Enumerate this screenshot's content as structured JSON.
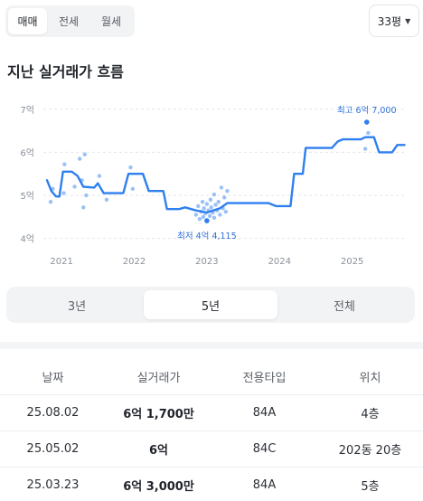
{
  "deal_tabs": [
    {
      "label": "매매",
      "active": true
    },
    {
      "label": "전세",
      "active": false
    },
    {
      "label": "월세",
      "active": false
    }
  ],
  "size_select": {
    "value": "33평",
    "icon": "caret-down-icon"
  },
  "section_title": "지난 실거래가 흐름",
  "chart_data": {
    "type": "line",
    "y_tick_labels": [
      "7억",
      "6억",
      "5억",
      "4억"
    ],
    "y_ticks": [
      7,
      6,
      5,
      4
    ],
    "ylim": [
      3.95,
      7.1
    ],
    "xlim": [
      2020.75,
      2025.75
    ],
    "x_tick_labels": [
      "2021",
      "2022",
      "2023",
      "2024",
      "2025"
    ],
    "x_ticks": [
      2021,
      2022,
      2023,
      2024,
      2025
    ],
    "grid": "horizontal-dashed",
    "series": [
      {
        "points": [
          [
            2020.8,
            5.35
          ],
          [
            2020.86,
            5.1
          ],
          [
            2020.92,
            4.98
          ],
          [
            2020.97,
            4.97
          ],
          [
            2021.02,
            5.55
          ],
          [
            2021.14,
            5.55
          ],
          [
            2021.22,
            5.45
          ],
          [
            2021.3,
            5.2
          ],
          [
            2021.45,
            5.18
          ],
          [
            2021.5,
            5.28
          ],
          [
            2021.58,
            5.05
          ],
          [
            2021.85,
            5.05
          ],
          [
            2021.92,
            5.5
          ],
          [
            2022.12,
            5.5
          ],
          [
            2022.2,
            5.1
          ],
          [
            2022.4,
            5.1
          ],
          [
            2022.45,
            4.68
          ],
          [
            2022.62,
            4.68
          ],
          [
            2022.7,
            4.72
          ],
          [
            2022.85,
            4.65
          ],
          [
            2023.0,
            4.6
          ],
          [
            2023.18,
            4.7
          ],
          [
            2023.28,
            4.82
          ],
          [
            2023.85,
            4.82
          ],
          [
            2023.95,
            4.75
          ],
          [
            2024.15,
            4.75
          ],
          [
            2024.2,
            5.5
          ],
          [
            2024.32,
            5.5
          ],
          [
            2024.36,
            6.1
          ],
          [
            2024.72,
            6.1
          ],
          [
            2024.8,
            6.25
          ],
          [
            2024.87,
            6.3
          ],
          [
            2025.12,
            6.3
          ],
          [
            2025.18,
            6.35
          ],
          [
            2025.3,
            6.35
          ],
          [
            2025.37,
            6.0
          ],
          [
            2025.55,
            6.0
          ],
          [
            2025.62,
            6.17
          ],
          [
            2025.72,
            6.17
          ]
        ]
      }
    ],
    "scatter": [
      [
        2020.85,
        4.85
      ],
      [
        2020.88,
        5.15
      ],
      [
        2021.03,
        5.05
      ],
      [
        2021.04,
        5.72
      ],
      [
        2021.18,
        5.2
      ],
      [
        2021.25,
        5.85
      ],
      [
        2021.28,
        5.35
      ],
      [
        2021.3,
        4.72
      ],
      [
        2021.32,
        5.95
      ],
      [
        2021.34,
        5.0
      ],
      [
        2021.52,
        5.45
      ],
      [
        2021.62,
        4.9
      ],
      [
        2021.95,
        5.65
      ],
      [
        2021.98,
        5.15
      ],
      [
        2022.85,
        4.55
      ],
      [
        2022.88,
        4.75
      ],
      [
        2022.9,
        4.45
      ],
      [
        2022.92,
        4.62
      ],
      [
        2022.94,
        4.85
      ],
      [
        2022.95,
        4.5
      ],
      [
        2022.96,
        4.7
      ],
      [
        2022.98,
        4.58
      ],
      [
        2023.0,
        4.42
      ],
      [
        2023.0,
        4.8
      ],
      [
        2023.02,
        4.65
      ],
      [
        2023.04,
        4.52
      ],
      [
        2023.05,
        4.9
      ],
      [
        2023.06,
        4.72
      ],
      [
        2023.08,
        4.6
      ],
      [
        2023.1,
        4.48
      ],
      [
        2023.1,
        5.02
      ],
      [
        2023.12,
        4.78
      ],
      [
        2023.14,
        4.65
      ],
      [
        2023.16,
        4.85
      ],
      [
        2023.18,
        4.55
      ],
      [
        2023.2,
        5.18
      ],
      [
        2023.22,
        4.7
      ],
      [
        2023.24,
        4.95
      ],
      [
        2023.26,
        4.62
      ],
      [
        2023.28,
        5.1
      ],
      [
        2025.18,
        6.08
      ],
      [
        2025.22,
        6.45
      ]
    ],
    "highlight_points": [
      [
        2025.2,
        6.7
      ],
      [
        2023.0,
        4.41
      ]
    ],
    "annotations": [
      {
        "text": "최고 6억 7,000",
        "x": 2025.2,
        "y": 6.7,
        "placement": "above"
      },
      {
        "text": "최저 4억 4,115",
        "x": 2023.0,
        "y": 4.41,
        "placement": "below"
      }
    ],
    "colors": {
      "line": "#2f7ff0",
      "scatter": "#8fbaf5",
      "highlight": "#2f7ff0",
      "annotation": "#2f6fd8",
      "grid": "#e3e6ea",
      "axis_text": "#8a9099"
    }
  },
  "period_tabs": [
    {
      "label": "3년",
      "active": false
    },
    {
      "label": "5년",
      "active": true
    },
    {
      "label": "전체",
      "active": false
    }
  ],
  "table": {
    "headers": [
      "날짜",
      "실거래가",
      "전용타입",
      "위치"
    ],
    "rows": [
      [
        "25.08.02",
        "6억 1,700만",
        "84A",
        "4층"
      ],
      [
        "25.05.02",
        "6억",
        "84C",
        "202동 20층"
      ],
      [
        "25.03.23",
        "6억 3,000만",
        "84A",
        "5층"
      ]
    ]
  }
}
